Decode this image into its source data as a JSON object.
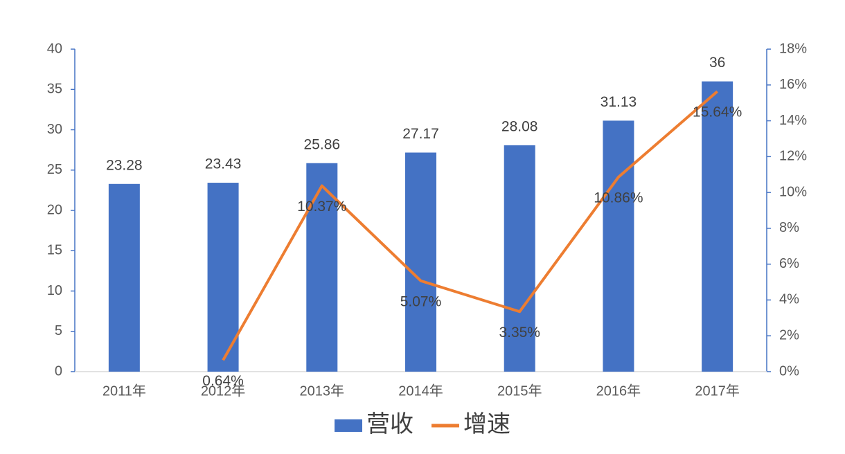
{
  "chart_data": {
    "type": "bar",
    "categories": [
      "2011年",
      "2012年",
      "2013年",
      "2014年",
      "2015年",
      "2016年",
      "2017年"
    ],
    "series": [
      {
        "name": "营收",
        "type": "bar",
        "color": "#4472c4",
        "values": [
          23.28,
          23.43,
          25.86,
          27.17,
          28.08,
          31.13,
          36
        ]
      },
      {
        "name": "增速",
        "type": "line",
        "axis": "y2",
        "color": "#ed7d31",
        "values": [
          null,
          0.64,
          10.37,
          5.07,
          3.35,
          10.86,
          15.64
        ],
        "value_labels": [
          null,
          "0.64%",
          "10.37%",
          "5.07%",
          "3.35%",
          "10.86%",
          "15.64%"
        ]
      }
    ],
    "ylim": [
      0,
      40
    ],
    "yticks": [
      0,
      5,
      10,
      15,
      20,
      25,
      30,
      35,
      40
    ],
    "y2lim": [
      0,
      18
    ],
    "y2ticks": [
      {
        "value": 0,
        "label": "0%"
      },
      {
        "value": 2,
        "label": "2%"
      },
      {
        "value": 4,
        "label": "4%"
      },
      {
        "value": 6,
        "label": "6%"
      },
      {
        "value": 8,
        "label": "8%"
      },
      {
        "value": 10,
        "label": "10%"
      },
      {
        "value": 12,
        "label": "12%"
      },
      {
        "value": 14,
        "label": "14%"
      },
      {
        "value": 16,
        "label": "16%"
      },
      {
        "value": 18,
        "label": "18%"
      }
    ],
    "grid": false,
    "legend": "bottom"
  }
}
